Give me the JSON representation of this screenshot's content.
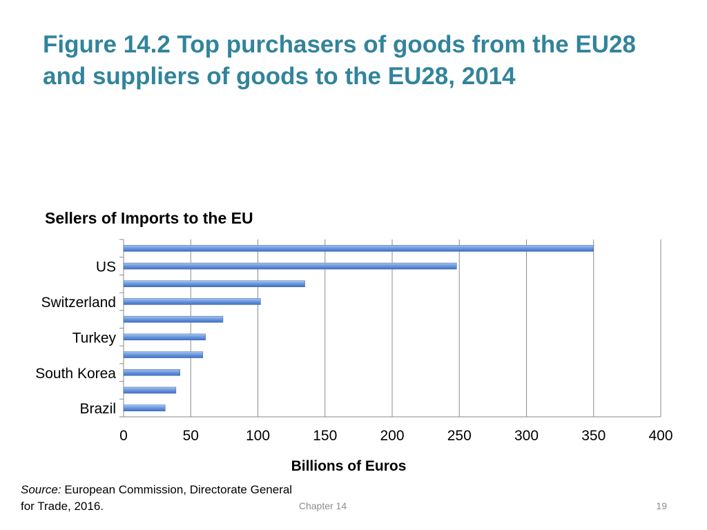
{
  "slide": {
    "title": "Figure 14.2 Top purchasers of goods from the EU28 and suppliers of goods to the EU28, 2014",
    "source_label": "Source:",
    "source_text": "European Commission, Directorate General for Trade, 2016.",
    "footer_chapter": "Chapter 14",
    "page_number": "19"
  },
  "colors": {
    "title": "#31849b",
    "bar": "#4f81bd"
  },
  "chart_data": {
    "type": "bar",
    "orientation": "horizontal",
    "title": "Sellers of Imports to the EU",
    "xlabel": "Billions of Euros",
    "ylabel": "",
    "categories": [
      "",
      "US",
      "",
      "Switzerland",
      "",
      "Turkey",
      "",
      "South Korea",
      "",
      "Brazil"
    ],
    "values": [
      350,
      248,
      135,
      102,
      74,
      61,
      59,
      42,
      39,
      31
    ],
    "xlim": [
      0,
      400
    ],
    "xticks": [
      0,
      50,
      100,
      150,
      200,
      250,
      300,
      350,
      400
    ],
    "grid": "vertical",
    "legend": "none"
  }
}
